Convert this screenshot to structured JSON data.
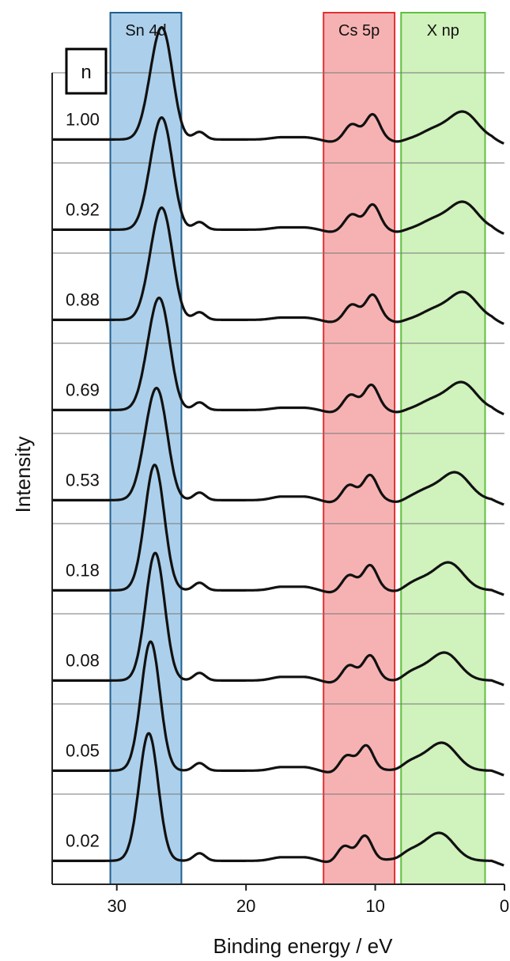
{
  "chart_data": {
    "type": "line",
    "xlabel": "Binding energy / eV",
    "ylabel": "Intensity",
    "xlim": [
      35,
      0
    ],
    "xticks": [
      30,
      20,
      10,
      0
    ],
    "legend_title": "n",
    "regions": [
      {
        "label": "Sn 4d",
        "range": [
          30.5,
          25.0
        ],
        "fill": "#9ec8e8",
        "stroke": "#1f5f8f"
      },
      {
        "label": "Cs 5p",
        "range": [
          14.0,
          8.5
        ],
        "fill": "#f4a5a5",
        "stroke": "#e03030"
      },
      {
        "label": "X np",
        "range": [
          8.0,
          1.5
        ],
        "fill": "#c8f0b0",
        "stroke": "#5fc040"
      }
    ],
    "series": [
      {
        "name": "1.00",
        "sn_peaks": [
          27.0,
          26.2
        ],
        "cs_peaks": [
          11.8,
          10.2
        ],
        "x_peak": 3.2
      },
      {
        "name": "0.92",
        "sn_peaks": [
          27.0,
          26.2
        ],
        "cs_peaks": [
          11.8,
          10.2
        ],
        "x_peak": 3.2
      },
      {
        "name": "0.88",
        "sn_peaks": [
          27.0,
          26.2
        ],
        "cs_peaks": [
          11.8,
          10.2
        ],
        "x_peak": 3.2
      },
      {
        "name": "0.69",
        "sn_peaks": [
          27.2,
          26.4
        ],
        "cs_peaks": [
          11.9,
          10.3
        ],
        "x_peak": 3.3
      },
      {
        "name": "0.53",
        "sn_peaks": [
          27.4,
          26.6
        ],
        "cs_peaks": [
          12.0,
          10.4
        ],
        "x_peak": 3.8
      },
      {
        "name": "0.18",
        "sn_peaks": [
          27.3,
          26.9
        ],
        "cs_peaks": [
          12.0,
          10.4
        ],
        "x_peak": 4.3
      },
      {
        "name": "0.08",
        "sn_peaks": [
          27.2,
          26.9
        ],
        "cs_peaks": [
          12.0,
          10.4
        ],
        "x_peak": 4.6
      },
      {
        "name": "0.05",
        "sn_peaks": [
          27.5,
          27.3
        ],
        "cs_peaks": [
          12.2,
          10.7
        ],
        "x_peak": 4.8
      },
      {
        "name": "0.02",
        "sn_peaks": [
          27.7,
          27.4
        ],
        "cs_peaks": [
          12.4,
          10.8
        ],
        "x_peak": 5.0
      }
    ]
  }
}
